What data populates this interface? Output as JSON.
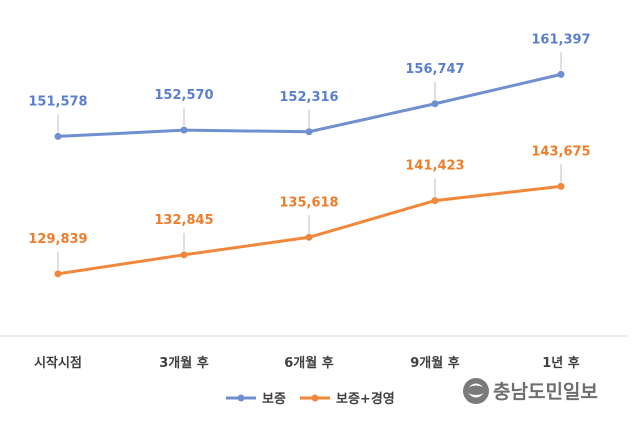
{
  "chart_data": {
    "type": "line",
    "categories": [
      "시작시점",
      "3개월 후",
      "6개월 후",
      "9개월 후",
      "1년 후"
    ],
    "series": [
      {
        "name": "보증",
        "color": "#6f8fd0",
        "label_color": "#5b7fcf",
        "values": [
          151578,
          152570,
          152316,
          156747,
          161397
        ],
        "value_labels": [
          "151,578",
          "152,570",
          "152,316",
          "156,747",
          "161,397"
        ]
      },
      {
        "name": "보증+경영",
        "color": "#f0873a",
        "label_color": "#ee7d2b",
        "values": [
          129839,
          132845,
          135618,
          141423,
          143675
        ],
        "value_labels": [
          "129,839",
          "132,845",
          "135,618",
          "141,423",
          "143,675"
        ]
      }
    ],
    "ylim": [
      120000,
      170000
    ],
    "grid": false,
    "legend_position": "bottom"
  },
  "watermark": {
    "text": "충남도민일보",
    "icon": "logo-circle-icon"
  }
}
